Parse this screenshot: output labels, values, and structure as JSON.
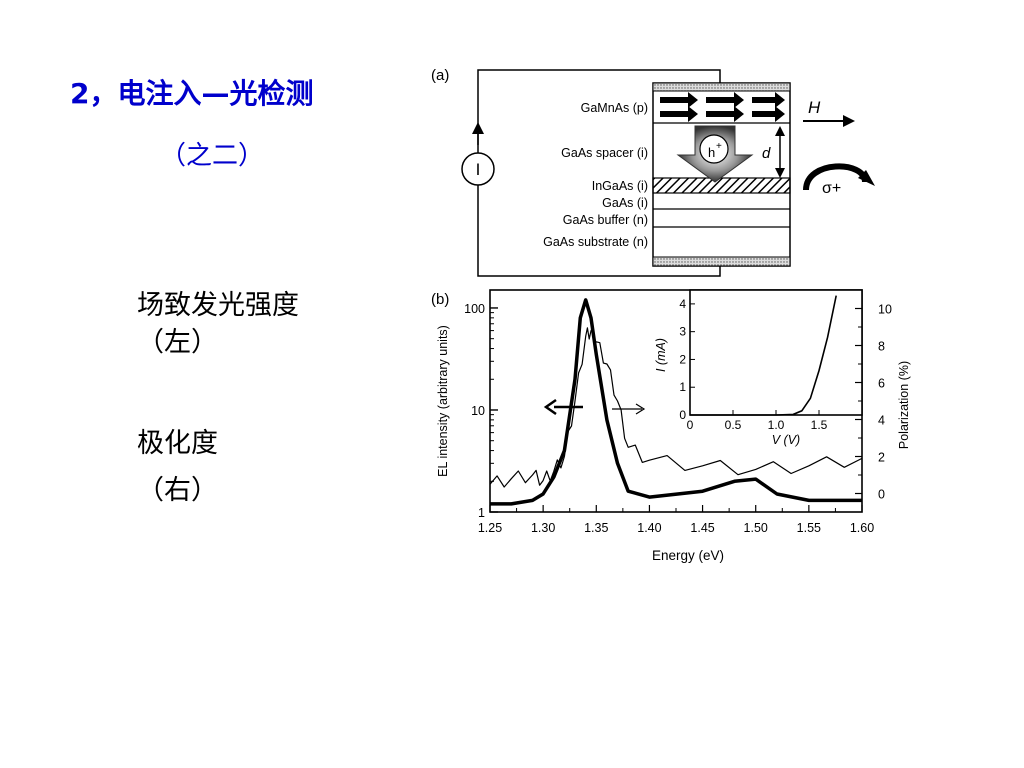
{
  "slide": {
    "title": "2，电注入—光检测",
    "subtitle": "（之二）",
    "left_notes": [
      {
        "label": "场致发光强度",
        "paren": "（左）"
      },
      {
        "label": "极化度",
        "paren": "（右）"
      }
    ]
  },
  "panel_a": {
    "label": "(a)",
    "layers": [
      "GaMnAs (p)",
      "GaAs spacer (i)",
      "InGaAs (i)",
      "GaAs (i)",
      "GaAs buffer (n)",
      "GaAs substrate (n)"
    ],
    "current_symbol": "I",
    "hole_symbol": "h+",
    "distance_symbol": "d",
    "field_symbol": "H",
    "sigma_symbol": "σ+"
  },
  "panel_b": {
    "label": "(b)",
    "ylabel_left": "EL intensity (arbitrary units)",
    "ylabel_right": "Polarization (%)",
    "xlabel": "Energy (eV)",
    "x_ticks": [
      "1.25",
      "1.30",
      "1.35",
      "1.40",
      "1.45",
      "1.50",
      "1.55",
      "1.60"
    ],
    "y_left_ticks": [
      "1",
      "10",
      "100"
    ],
    "y_right_ticks": [
      "0",
      "2",
      "4",
      "6",
      "8",
      "10"
    ],
    "inset": {
      "ylabel": "I (mA)",
      "xlabel": "V (V)",
      "x_ticks": [
        "0",
        "0.5",
        "1.0",
        "1.5"
      ],
      "y_ticks": [
        "0",
        "1",
        "2",
        "3",
        "4"
      ]
    }
  },
  "chart_data": [
    {
      "type": "line",
      "xlabel": "Energy (eV)",
      "ylabel": "EL intensity (arbitrary units)",
      "ylabel_right": "Polarization (%)",
      "xlim": [
        1.25,
        1.6
      ],
      "ylim": [
        1,
        150
      ],
      "ylim_right": [
        -1,
        11
      ],
      "y_scale": "log",
      "series": [
        {
          "axis": "left",
          "style": "thick",
          "x": [
            1.25,
            1.27,
            1.29,
            1.3,
            1.31,
            1.32,
            1.33,
            1.335,
            1.34,
            1.345,
            1.35,
            1.36,
            1.37,
            1.38,
            1.4,
            1.45,
            1.48,
            1.5,
            1.52,
            1.55,
            1.6
          ],
          "y": [
            1.2,
            1.2,
            1.3,
            1.5,
            2.2,
            4,
            20,
            80,
            120,
            80,
            35,
            8,
            3,
            1.6,
            1.4,
            1.6,
            2.0,
            2.1,
            1.5,
            1.3,
            1.3
          ]
        },
        {
          "axis": "right",
          "style": "thin",
          "x": [
            1.25,
            1.27,
            1.29,
            1.3,
            1.31,
            1.32,
            1.33,
            1.34,
            1.345,
            1.35,
            1.36,
            1.37,
            1.38,
            1.4,
            1.45,
            1.5,
            1.55,
            1.6
          ],
          "y": [
            0.5,
            0.8,
            1.0,
            0.7,
            1.2,
            2.0,
            5.0,
            8.5,
            8.8,
            8.2,
            7.0,
            5.0,
            2.5,
            1.8,
            1.5,
            1.3,
            1.5,
            1.9
          ]
        }
      ]
    },
    {
      "type": "line",
      "xlabel": "V (V)",
      "ylabel": "I (mA)",
      "xlim": [
        0,
        2.0
      ],
      "ylim": [
        0,
        4.5
      ],
      "series": [
        {
          "x": [
            0,
            0.5,
            1.0,
            1.2,
            1.3,
            1.4,
            1.5,
            1.6,
            1.7
          ],
          "y": [
            0,
            0,
            0,
            0.02,
            0.15,
            0.6,
            1.6,
            2.8,
            4.3
          ]
        }
      ]
    }
  ]
}
